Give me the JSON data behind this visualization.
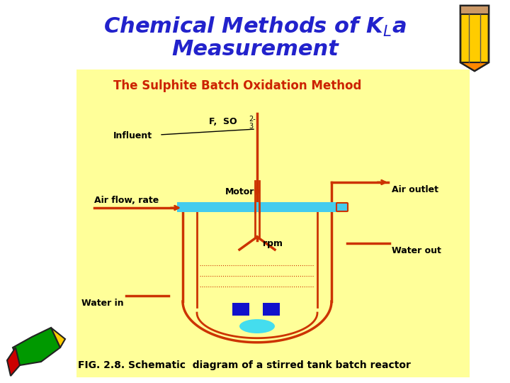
{
  "bg_color": "#FFFFFF",
  "panel_color": "#FFFF99",
  "title_color": "#2222CC",
  "subtitle": "The Sulphite Batch Oxidation Method",
  "subtitle_color": "#CC2200",
  "tank_color": "#CC3300",
  "tank_top_color": "#44CCEE",
  "fig_caption": "FIG. 2.8. Schematic  diagram of a stirred tank batch reactor",
  "label_influent": "Influent",
  "label_airflow": "Air flow, rate",
  "label_motor": "Motor",
  "label_rpm": "rpm",
  "label_airoutlet": "Air outlet",
  "label_waterout": "Water out",
  "label_waterin": "Water in",
  "label_f_so3": "F,  SO",
  "sparger_color": "#44DDEE",
  "baffle_color": "#1111CC"
}
